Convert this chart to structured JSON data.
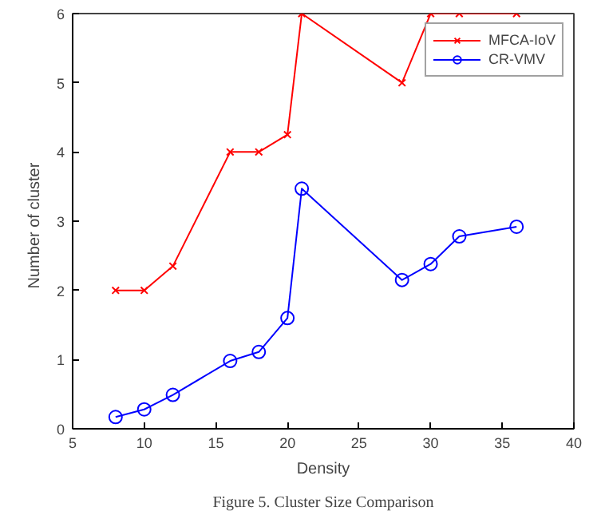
{
  "chart_data": {
    "type": "line",
    "title": "Figure 5. Cluster Size Comparison",
    "xlabel": "Density",
    "ylabel": "Number  of  cluster",
    "x": [
      8,
      10,
      12,
      16,
      18,
      20,
      21,
      28,
      30,
      32,
      36
    ],
    "series": [
      {
        "name": "MFCA-IoV",
        "color": "#ff0000",
        "marker": "cross",
        "values": [
          2,
          2,
          2.35,
          4,
          4,
          4.25,
          6,
          5,
          6,
          6,
          6
        ]
      },
      {
        "name": "CR-VMV",
        "color": "#0000ff",
        "marker": "circle",
        "values": [
          0.17,
          0.28,
          0.49,
          0.98,
          1.11,
          1.6,
          3.47,
          2.15,
          2.38,
          2.78,
          2.92
        ]
      }
    ],
    "xlim": [
      5,
      40
    ],
    "xticks": [
      5,
      10,
      15,
      20,
      25,
      30,
      35,
      40
    ],
    "ylim": [
      0,
      6
    ],
    "yticks": [
      0,
      1,
      2,
      3,
      4,
      5,
      6
    ],
    "grid": false,
    "legend": "top right",
    "line_style": "solid"
  }
}
